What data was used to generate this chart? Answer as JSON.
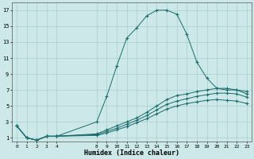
{
  "xlabel": "Humidex (Indice chaleur)",
  "bg_color": "#cce8e8",
  "grid_color": "#aacece",
  "line_color": "#1a6b6b",
  "xlim": [
    -0.5,
    23.5
  ],
  "ylim": [
    0.5,
    18.0
  ],
  "xticks": [
    0,
    1,
    2,
    3,
    4,
    8,
    9,
    10,
    11,
    12,
    13,
    14,
    15,
    16,
    17,
    18,
    19,
    20,
    21,
    22,
    23
  ],
  "yticks": [
    1,
    3,
    5,
    7,
    9,
    11,
    13,
    15,
    17
  ],
  "line1_x": [
    0,
    1,
    2,
    3,
    4,
    8,
    9,
    10,
    11,
    12,
    13,
    14,
    15,
    16,
    17,
    18,
    19,
    20,
    21,
    22,
    23
  ],
  "line1_y": [
    2.5,
    1.0,
    0.7,
    1.2,
    1.2,
    3.0,
    6.2,
    10.0,
    13.5,
    14.8,
    16.3,
    17.0,
    17.0,
    16.5,
    14.0,
    10.5,
    8.5,
    7.2,
    7.0,
    7.0,
    6.8
  ],
  "line2_x": [
    0,
    1,
    2,
    3,
    4,
    8,
    9,
    10,
    11,
    12,
    13,
    14,
    15,
    16,
    17,
    18,
    19,
    20,
    21,
    22,
    23
  ],
  "line2_y": [
    2.5,
    1.0,
    0.7,
    1.2,
    1.2,
    1.5,
    2.0,
    2.5,
    3.0,
    3.5,
    4.2,
    5.0,
    5.8,
    6.3,
    6.5,
    6.8,
    7.0,
    7.2,
    7.2,
    7.0,
    6.5
  ],
  "line3_x": [
    0,
    1,
    2,
    3,
    4,
    8,
    9,
    10,
    11,
    12,
    13,
    14,
    15,
    16,
    17,
    18,
    19,
    20,
    21,
    22,
    23
  ],
  "line3_y": [
    2.5,
    1.0,
    0.7,
    1.2,
    1.2,
    1.4,
    1.8,
    2.2,
    2.7,
    3.2,
    3.8,
    4.5,
    5.2,
    5.6,
    5.9,
    6.2,
    6.4,
    6.6,
    6.6,
    6.5,
    6.1
  ],
  "line4_x": [
    0,
    1,
    2,
    3,
    4,
    8,
    9,
    10,
    11,
    12,
    13,
    14,
    15,
    16,
    17,
    18,
    19,
    20,
    21,
    22,
    23
  ],
  "line4_y": [
    2.5,
    1.0,
    0.7,
    1.2,
    1.2,
    1.3,
    1.6,
    2.0,
    2.4,
    2.9,
    3.4,
    4.0,
    4.6,
    5.0,
    5.3,
    5.5,
    5.7,
    5.8,
    5.7,
    5.6,
    5.3
  ]
}
